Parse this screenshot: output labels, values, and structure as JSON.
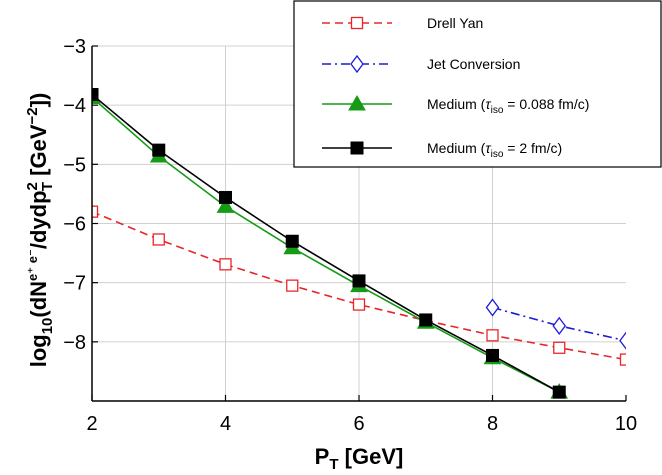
{
  "chart_data": {
    "type": "line",
    "xlabel": "P",
    "xlabel_sub": "T",
    "xlabel_unit": "[GeV]",
    "ylabel": "log",
    "ylabel_sub": "10",
    "ylabel_main": "(dN",
    "ylabel_sup": "e⁺ e⁻",
    "ylabel_mid": "/dydp",
    "ylabel_p_sup": "2",
    "ylabel_p_sub": "T",
    "ylabel_unit_open": " [GeV",
    "ylabel_unit_sup": "−2",
    "ylabel_unit_close": "])",
    "xlim": [
      2,
      10
    ],
    "ylim": [
      -9,
      -3
    ],
    "xticks": [
      2,
      4,
      6,
      8,
      10
    ],
    "yticks": [
      -3,
      -4,
      -5,
      -6,
      -7,
      -8
    ],
    "grid": true,
    "legend_position": "top-right",
    "series": [
      {
        "name_parts": [
          "Drell Yan"
        ],
        "color": "#e8262a",
        "dash": "dashed",
        "marker": "open-square",
        "x": [
          2,
          3,
          4,
          5,
          6,
          7,
          8,
          9,
          10
        ],
        "y": [
          -5.8,
          -6.27,
          -6.69,
          -7.05,
          -7.37,
          -7.64,
          -7.89,
          -8.1,
          -8.3
        ]
      },
      {
        "name_parts": [
          "Jet Conversion"
        ],
        "color": "#1c1cd6",
        "dash": "dashdot",
        "marker": "open-diamond",
        "x": [
          8,
          9,
          10
        ],
        "y": [
          -7.42,
          -7.73,
          -7.98
        ]
      },
      {
        "name_parts": [
          "Medium (",
          "τ",
          "iso",
          " =  0.088 fm/c)"
        ],
        "color": "#159b15",
        "dash": "solid",
        "marker": "filled-triangle",
        "x": [
          2,
          3,
          4,
          5,
          6,
          7,
          8,
          9
        ],
        "y": [
          -3.87,
          -4.86,
          -5.71,
          -6.41,
          -7.05,
          -7.67,
          -8.27,
          -8.85
        ]
      },
      {
        "name_parts": [
          "Medium (",
          "τ",
          "iso",
          " = 2 fm/c)"
        ],
        "color": "#000000",
        "dash": "solid",
        "marker": "filled-square",
        "x": [
          2,
          3,
          4,
          5,
          6,
          7,
          8,
          9
        ],
        "y": [
          -3.82,
          -4.76,
          -5.56,
          -6.3,
          -6.97,
          -7.63,
          -8.23,
          -8.85
        ]
      }
    ]
  }
}
